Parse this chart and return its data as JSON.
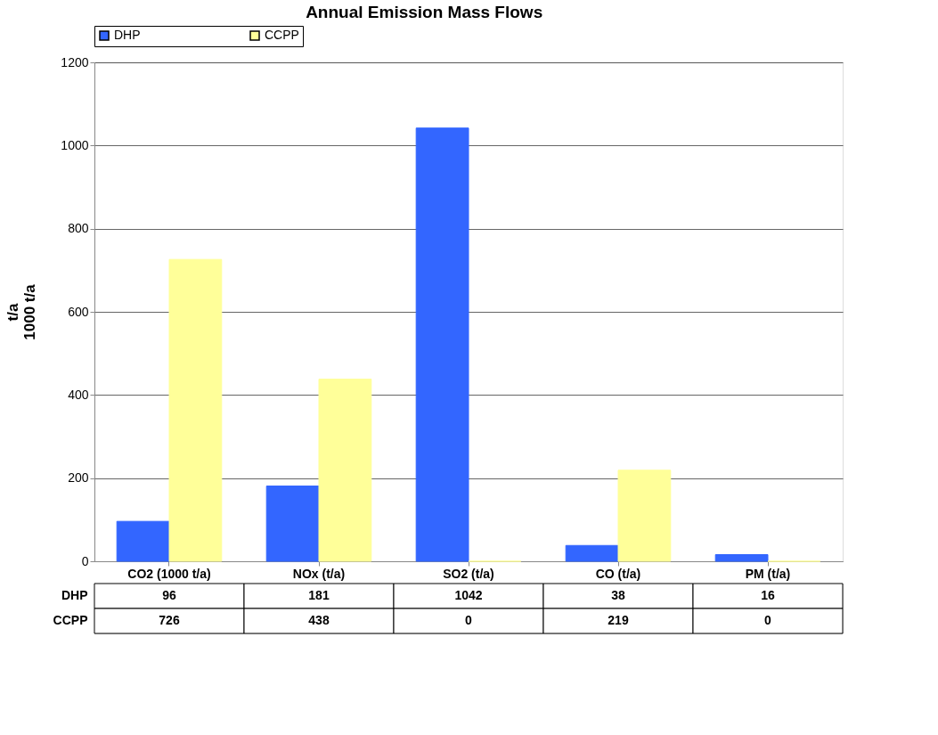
{
  "chart_data": {
    "type": "bar",
    "title": "Annual Emission Mass Flows",
    "ylabel": "t/a\n1000 t/a",
    "categories": [
      "CO2 (1000 t/a)",
      "NOx (t/a)",
      "SO2 (t/a)",
      "CO (t/a)",
      "PM (t/a)"
    ],
    "series": [
      {
        "name": "DHP",
        "color": "#3366ff",
        "values": [
          96,
          181,
          1042,
          38,
          16
        ]
      },
      {
        "name": "CCPP",
        "color": "#ffff99",
        "values": [
          726,
          438,
          0,
          219,
          0
        ]
      }
    ],
    "ylim": [
      0,
      1200
    ],
    "yticks": [
      0,
      200,
      400,
      600,
      800,
      1000,
      1200
    ],
    "grid": "y",
    "legend": "top",
    "data_labels": true
  }
}
